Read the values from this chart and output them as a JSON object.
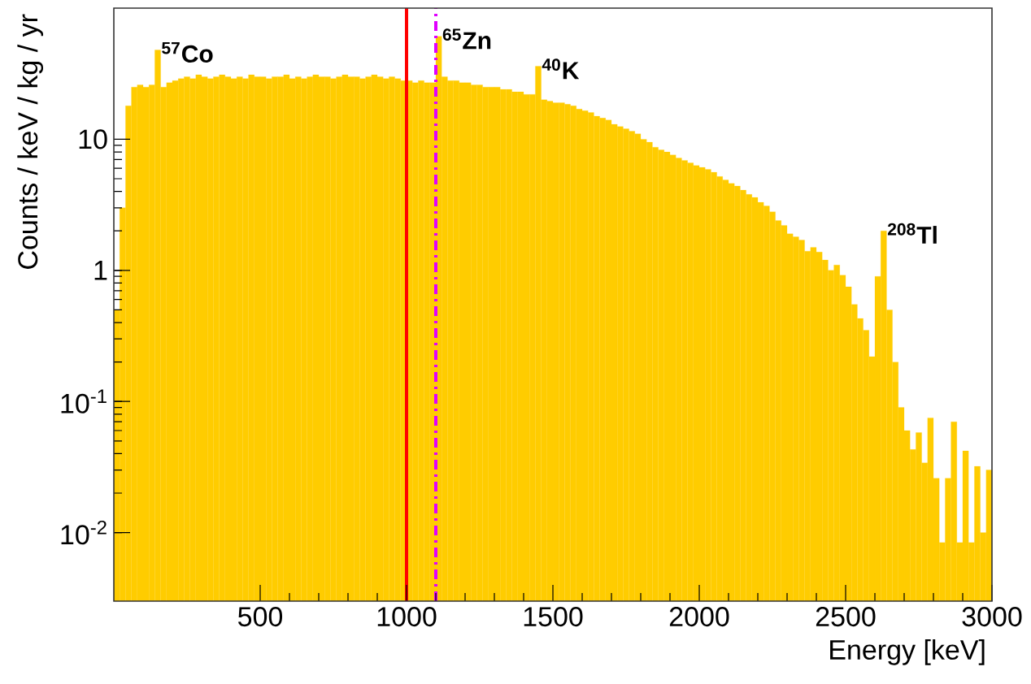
{
  "chart_data": {
    "type": "histogram",
    "xlabel": "Energy [keV]",
    "ylabel": "Counts / keV / kg / yr",
    "color": "#ffcc00",
    "bins": [
      0,
      20,
      40,
      60,
      80,
      100,
      120,
      140,
      160,
      180,
      200,
      220,
      240,
      260,
      280,
      300,
      320,
      340,
      360,
      380,
      400,
      420,
      440,
      460,
      480,
      500,
      520,
      540,
      560,
      580,
      600,
      620,
      640,
      660,
      680,
      700,
      720,
      740,
      760,
      780,
      800,
      820,
      840,
      860,
      880,
      900,
      920,
      940,
      960,
      980,
      1000,
      1020,
      1040,
      1060,
      1080,
      1100,
      1120,
      1140,
      1160,
      1180,
      1200,
      1220,
      1240,
      1260,
      1280,
      1300,
      1320,
      1340,
      1360,
      1380,
      1400,
      1420,
      1440,
      1460,
      1480,
      1500,
      1520,
      1540,
      1560,
      1580,
      1600,
      1620,
      1640,
      1660,
      1680,
      1700,
      1720,
      1740,
      1760,
      1780,
      1800,
      1820,
      1840,
      1860,
      1880,
      1900,
      1920,
      1940,
      1960,
      1980,
      2000,
      2020,
      2040,
      2060,
      2080,
      2100,
      2120,
      2140,
      2160,
      2180,
      2200,
      2220,
      2240,
      2260,
      2280,
      2300,
      2320,
      2340,
      2360,
      2380,
      2400,
      2420,
      2440,
      2460,
      2480,
      2500,
      2520,
      2540,
      2560,
      2580,
      2600,
      2620,
      2640,
      2660,
      2680,
      2700,
      2720,
      2740,
      2760,
      2780,
      2800,
      2820,
      2840,
      2860,
      2880,
      2900,
      2920,
      2940,
      2960,
      2980,
      3000
    ],
    "values": [
      0.5,
      3,
      18,
      25,
      26,
      25,
      26,
      48,
      25,
      27,
      28,
      29,
      30,
      29,
      31,
      30,
      29,
      30,
      31,
      30,
      29,
      30,
      29,
      31,
      30,
      30,
      29,
      30,
      30,
      31,
      29,
      30,
      29,
      30,
      31,
      30,
      30,
      29,
      30,
      31,
      30,
      30,
      29,
      30,
      31,
      30,
      29,
      30,
      29,
      28,
      28,
      27,
      28,
      27,
      27,
      61,
      30,
      28,
      28,
      27,
      27,
      26,
      26,
      25,
      25,
      25,
      24,
      24,
      23,
      23,
      22,
      22,
      36,
      20,
      19.5,
      19,
      19,
      18.5,
      18,
      17,
      16.5,
      16,
      15,
      14.5,
      14,
      13,
      12.5,
      12,
      11.5,
      11,
      10,
      9.5,
      8.7,
      8.3,
      8,
      7.6,
      7.2,
      6.9,
      6.6,
      6.3,
      6.1,
      5.9,
      5.6,
      5.2,
      4.9,
      4.6,
      4.4,
      4.1,
      3.8,
      3.6,
      3.3,
      3.1,
      2.8,
      2.4,
      2.2,
      1.9,
      1.8,
      1.7,
      1.4,
      1.5,
      1.38,
      1.2,
      1.0,
      1.1,
      0.92,
      0.75,
      0.55,
      0.43,
      0.35,
      0.22,
      0.9,
      2.0,
      0.5,
      0.2,
      0.09,
      0.06,
      0.043,
      0.058,
      0.034,
      0.075,
      0.026,
      0.0084,
      0.026,
      0.07,
      0.0084,
      0.042,
      0.0084,
      0.032,
      0.01,
      0.03
    ],
    "xlim": [
      0,
      3000
    ],
    "xticks": [
      500,
      1000,
      1500,
      2000,
      2500,
      3000
    ],
    "ylim": [
      0.003,
      100
    ],
    "yticks": [
      {
        "value": 0.01,
        "label": "10$^{-2}$"
      },
      {
        "value": 0.1,
        "label": "10$^{-1}$"
      },
      1,
      10
    ],
    "log": "y",
    "ref_lines": [
      {
        "axis": "x",
        "value": 1000,
        "color": "#ff0000",
        "line_style": "solid"
      },
      {
        "axis": "x",
        "value": 1100,
        "color": "#e000ff",
        "line_style": "dashdot"
      }
    ],
    "annotations": [
      {
        "text": "$^{57}$Co",
        "x": 150,
        "y": 48
      },
      {
        "text": "$^{65}$Zn",
        "x": 1110,
        "y": 61
      },
      {
        "text": "$^{40}$K",
        "x": 1450,
        "y": 36
      },
      {
        "text": "$^{208}$Tl",
        "x": 2630,
        "y": 2.0
      }
    ]
  }
}
